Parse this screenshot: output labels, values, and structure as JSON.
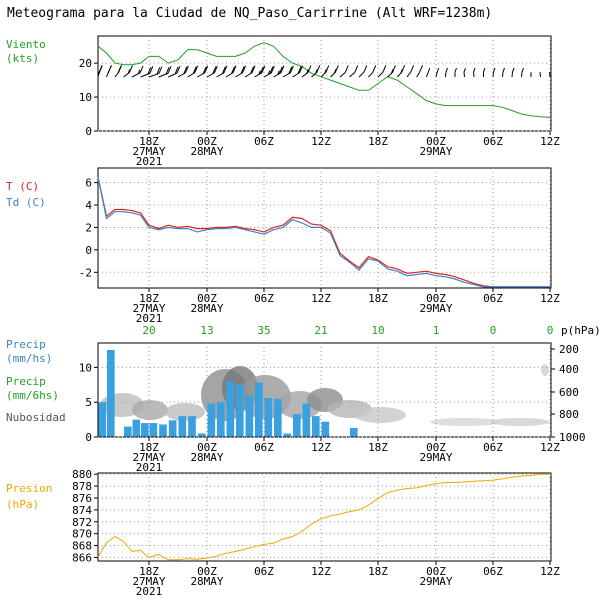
{
  "title": "Meteograma para la Ciudad de NQ_Paso_Carirrine (Alt WRF=1238m)",
  "time_axis": {
    "ticks": [
      "18Z",
      "00Z",
      "06Z",
      "12Z",
      "18Z",
      "00Z",
      "06Z",
      "12Z"
    ],
    "date_labels": [
      {
        "day": "27MAY",
        "year": "2021"
      },
      {
        "day": "28MAY",
        "year": ""
      },
      {
        "day": "29MAY",
        "year": ""
      }
    ]
  },
  "panels": {
    "wind": {
      "label_line1": "Viento",
      "label_line2": "(kts)"
    },
    "temp": {
      "label_t": "T (C)",
      "label_td": "Td (C)"
    },
    "precip": {
      "label_precip_hs": [
        "Precip",
        "(mm/hs)"
      ],
      "label_precip_6hs": [
        "Precip",
        "(mm/6hs)"
      ],
      "label_cloud": "Nubosidad",
      "accum_6h": [
        "20",
        "13",
        "35",
        "21",
        "10",
        "1",
        "0",
        "0"
      ],
      "pressure_axis_title": "p(hPa)"
    },
    "pressure": {
      "label_line1": "Presion",
      "label_line2": "(hPa)"
    }
  },
  "colors": {
    "wind": "#22a022",
    "temperature": "#dd2222",
    "dewpoint": "#3a86c8",
    "precip_bar": "#3aa0e0",
    "accum_text": "#22a022",
    "pressure": "#f0a800",
    "label_t": "#dd2222",
    "label_td": "#3a86c8",
    "label_green": "#22a022",
    "label_precip": "#3a86c8",
    "label_orange": "#f0a800",
    "grid": "#999999"
  },
  "chart_data": [
    {
      "type": "line",
      "name": "wind",
      "x_unit": "hours since 27MAY 12Z",
      "x_range": [
        0,
        48
      ],
      "ylim": [
        0,
        28
      ],
      "yticks": [
        0,
        10,
        20
      ],
      "series": [
        {
          "x": [
            0,
            1,
            2,
            3,
            4,
            5,
            6,
            7,
            8,
            9,
            10,
            11,
            12,
            13,
            14,
            15,
            16,
            17,
            18,
            19,
            20,
            21,
            22,
            23,
            24,
            25,
            26,
            27,
            28,
            29,
            30,
            31,
            32,
            33,
            34,
            35,
            36,
            37,
            38,
            39,
            40,
            41,
            42,
            43,
            44,
            45,
            46,
            47,
            48
          ],
          "values": [
            25,
            23,
            20,
            19.5,
            19.5,
            20,
            22,
            22,
            20,
            21,
            24,
            24,
            23,
            22,
            22,
            22,
            23,
            25,
            26,
            25,
            22,
            20,
            19,
            17,
            16,
            15,
            14,
            13,
            12,
            12,
            14,
            16,
            15,
            13,
            11,
            9,
            8,
            7.5,
            7.5,
            7.5,
            7.5,
            7.5,
            7.5,
            7,
            6,
            5,
            4.5,
            4.2,
            4
          ]
        }
      ],
      "wind_barbs": {
        "x": [
          0,
          1,
          2,
          3,
          4,
          5,
          6,
          7,
          8,
          9,
          10,
          11,
          12,
          13,
          14,
          15,
          16,
          17,
          18,
          19,
          20,
          21,
          22,
          23,
          24,
          25,
          26,
          27,
          28,
          29,
          30,
          31,
          32,
          33,
          34,
          35,
          36,
          37,
          38,
          39,
          40,
          41,
          42,
          43,
          44,
          45,
          46,
          47,
          48
        ],
        "direction_deg": [
          265,
          262,
          255,
          245,
          235,
          228,
          225,
          228,
          232,
          238,
          240,
          238,
          238,
          238,
          240,
          240,
          240,
          238,
          238,
          238,
          238,
          240,
          245,
          248,
          250,
          250,
          248,
          248,
          250,
          252,
          250,
          250,
          252,
          255,
          258,
          262,
          265,
          268,
          270,
          272,
          272,
          270,
          268,
          268,
          268,
          268,
          270,
          272,
          272
        ],
        "speed_kts": [
          25,
          23,
          20,
          19.5,
          19.5,
          20,
          22,
          22,
          20,
          21,
          24,
          24,
          23,
          22,
          22,
          22,
          23,
          25,
          26,
          25,
          22,
          20,
          19,
          17,
          16,
          15,
          14,
          13,
          12,
          12,
          14,
          16,
          15,
          13,
          11,
          9,
          8,
          7.5,
          7.5,
          7.5,
          7.5,
          7.5,
          7.5,
          7,
          6,
          5,
          4.5,
          4.2,
          4
        ]
      }
    },
    {
      "type": "line",
      "name": "temperature",
      "x_unit": "hours since 27MAY 12Z",
      "ylim": [
        -3.4,
        7.3
      ],
      "yticks": [
        -2,
        0,
        2,
        4,
        6
      ],
      "series": [
        {
          "name": "T (C)",
          "x": [
            0,
            1,
            2,
            3,
            4,
            5,
            6,
            7,
            8,
            9,
            10,
            11,
            12,
            13,
            14,
            15,
            16,
            17,
            18,
            19,
            20,
            21,
            22,
            23,
            24,
            25,
            26,
            27,
            28,
            29,
            30,
            31,
            32,
            33,
            34,
            35,
            36,
            37,
            38,
            39,
            40,
            41,
            42,
            43,
            44,
            45,
            46,
            47,
            48
          ],
          "values": [
            6.5,
            3.0,
            3.6,
            3.6,
            3.5,
            3.3,
            2.2,
            1.9,
            2.2,
            2.0,
            2.1,
            1.9,
            1.9,
            2.0,
            2.0,
            2.1,
            1.9,
            1.8,
            1.6,
            2.0,
            2.2,
            2.9,
            2.8,
            2.3,
            2.2,
            1.7,
            -0.3,
            -1.0,
            -1.6,
            -0.6,
            -0.9,
            -1.5,
            -1.7,
            -2.1,
            -2.0,
            -1.9,
            -2.1,
            -2.2,
            -2.4,
            -2.7,
            -3.0,
            -3.2,
            -3.3,
            -3.3,
            -3.3,
            -3.3,
            -3.3,
            -3.3,
            -3.3
          ]
        },
        {
          "name": "Td (C)",
          "x": [
            0,
            1,
            2,
            3,
            4,
            5,
            6,
            7,
            8,
            9,
            10,
            11,
            12,
            13,
            14,
            15,
            16,
            17,
            18,
            19,
            20,
            21,
            22,
            23,
            24,
            25,
            26,
            27,
            28,
            29,
            30,
            31,
            32,
            33,
            34,
            35,
            36,
            37,
            38,
            39,
            40,
            41,
            42,
            43,
            44,
            45,
            46,
            47,
            48
          ],
          "values": [
            6.5,
            2.8,
            3.4,
            3.4,
            3.3,
            3.1,
            2.0,
            1.8,
            2.0,
            1.9,
            1.9,
            1.6,
            1.8,
            1.9,
            1.9,
            2.0,
            1.8,
            1.6,
            1.4,
            1.8,
            2.0,
            2.7,
            2.4,
            2.0,
            2.0,
            1.5,
            -0.5,
            -1.1,
            -1.8,
            -0.8,
            -1.0,
            -1.7,
            -1.9,
            -2.3,
            -2.2,
            -2.1,
            -2.3,
            -2.4,
            -2.6,
            -2.9,
            -3.1,
            -3.3,
            -3.3,
            -3.3,
            -3.3,
            -3.3,
            -3.3,
            -3.3,
            -3.3
          ]
        }
      ]
    },
    {
      "type": "bar",
      "name": "precip",
      "x_unit": "hours since 27MAY 12Z",
      "ylim": [
        0,
        13.5
      ],
      "yticks": [
        0,
        5,
        10
      ],
      "bars": {
        "x": [
          0,
          1,
          2,
          3,
          4,
          5,
          6,
          7,
          8,
          9,
          10,
          11,
          12,
          13,
          14,
          15,
          16,
          17,
          18,
          19,
          20,
          21,
          22,
          23,
          24,
          25,
          26,
          27,
          28,
          29,
          30,
          31,
          32,
          33,
          34,
          35,
          36,
          37,
          38,
          39,
          40,
          41,
          42,
          43,
          44,
          45,
          46,
          47,
          48
        ],
        "values": [
          5,
          12.5,
          0,
          1.5,
          2.5,
          2,
          2,
          1.8,
          2.4,
          3,
          3,
          0.5,
          4.8,
          5,
          8,
          7.5,
          6,
          7.8,
          5.6,
          5.5,
          0.5,
          3.3,
          4.8,
          3.0,
          2.2,
          0,
          0,
          1.3,
          0,
          0,
          0,
          0,
          0,
          0,
          0,
          0,
          0,
          0,
          0,
          0,
          0,
          0,
          0,
          0,
          0,
          0,
          0,
          0,
          0
        ]
      },
      "pressure_axis": {
        "ticks": [
          "200",
          "400",
          "600",
          "800",
          "1000"
        ]
      }
    },
    {
      "type": "line",
      "name": "pressure",
      "x_unit": "hours since 27MAY 12Z",
      "ylim": [
        865.4,
        880.2
      ],
      "yticks": [
        866,
        868,
        870,
        872,
        874,
        876,
        878,
        880
      ],
      "series": [
        {
          "x": [
            0,
            1,
            2,
            3,
            4,
            5,
            6,
            7,
            8,
            9,
            10,
            11,
            12,
            13,
            14,
            15,
            16,
            17,
            18,
            19,
            20,
            21,
            22,
            23,
            24,
            25,
            26,
            27,
            28,
            29,
            30,
            31,
            32,
            33,
            34,
            35,
            36,
            37,
            38,
            39,
            40,
            41,
            42,
            43,
            44,
            45,
            46,
            47,
            48
          ],
          "values": [
            866,
            868.5,
            869.5,
            868.7,
            867,
            867.2,
            866,
            866.5,
            865.6,
            865.6,
            865.8,
            865.7,
            865.9,
            866.2,
            866.7,
            867.0,
            867.4,
            867.8,
            868.2,
            868.4,
            869.1,
            869.5,
            870.4,
            871.6,
            872.5,
            873.0,
            873.3,
            873.7,
            874.0,
            874.8,
            875.9,
            876.9,
            877.3,
            877.6,
            877.7,
            878.1,
            878.4,
            878.6,
            878.6,
            878.7,
            878.8,
            878.9,
            879.0,
            879.2,
            879.5,
            879.7,
            879.8,
            880.0,
            880.0
          ]
        }
      ]
    }
  ]
}
